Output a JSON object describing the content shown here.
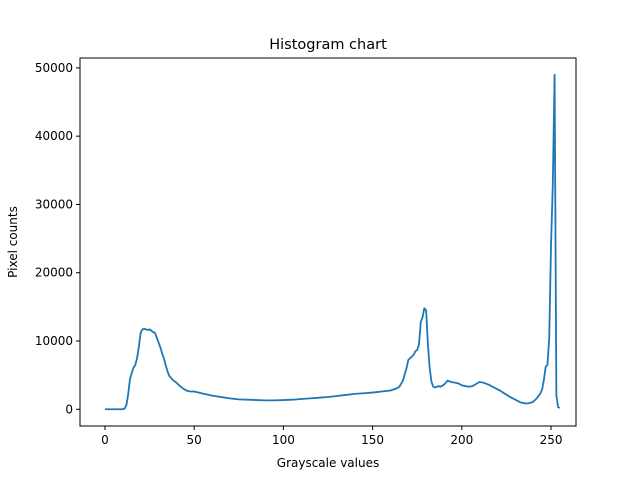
{
  "colors": {
    "line": "#1f77b4",
    "axes": "#000000",
    "background": "#ffffff"
  },
  "chart_data": {
    "type": "line",
    "title": "Histogram chart",
    "xlabel": "Grayscale values",
    "ylabel": "Pixel counts",
    "xlim": [
      -14,
      264
    ],
    "ylim": [
      -2450,
      51450
    ],
    "xticks": [
      0,
      50,
      100,
      150,
      200,
      250
    ],
    "yticks": [
      0,
      10000,
      20000,
      30000,
      40000,
      50000
    ],
    "grid": false,
    "legend": "none",
    "series": [
      {
        "x": [
          0,
          5,
          10,
          11,
          12,
          13,
          14,
          15,
          16,
          17,
          18,
          19,
          20,
          21,
          22,
          23,
          24,
          25,
          26,
          27,
          28,
          29,
          30,
          31,
          32,
          33,
          34,
          35,
          36,
          38,
          40,
          42,
          44,
          46,
          48,
          50,
          55,
          60,
          65,
          70,
          75,
          80,
          85,
          90,
          95,
          100,
          105,
          110,
          115,
          120,
          125,
          130,
          135,
          140,
          145,
          150,
          155,
          160,
          163,
          165,
          167,
          169,
          170,
          171,
          172,
          173,
          174,
          175,
          176,
          177,
          178,
          179,
          180,
          181,
          182,
          183,
          184,
          185,
          186,
          187,
          188,
          190,
          192,
          194,
          196,
          198,
          200,
          202,
          204,
          206,
          208,
          210,
          212,
          215,
          218,
          221,
          224,
          227,
          230,
          233,
          236,
          238,
          240,
          242,
          244,
          245,
          246,
          247,
          248,
          249,
          250,
          251,
          252,
          253,
          254,
          255
        ],
        "y": [
          0,
          0,
          0,
          100,
          600,
          2200,
          4400,
          5300,
          6100,
          6500,
          7500,
          9200,
          11200,
          11700,
          11800,
          11700,
          11600,
          11700,
          11500,
          11300,
          11200,
          10500,
          9800,
          9100,
          8200,
          7500,
          6500,
          5600,
          4900,
          4300,
          3900,
          3400,
          3000,
          2700,
          2600,
          2600,
          2300,
          2000,
          1800,
          1600,
          1450,
          1400,
          1350,
          1300,
          1300,
          1350,
          1400,
          1500,
          1600,
          1700,
          1800,
          1950,
          2100,
          2250,
          2350,
          2450,
          2600,
          2750,
          3000,
          3300,
          4200,
          6000,
          7200,
          7500,
          7700,
          8000,
          8500,
          8700,
          9500,
          12800,
          13500,
          14800,
          14500,
          9500,
          6000,
          4000,
          3300,
          3200,
          3300,
          3400,
          3300,
          3600,
          4200,
          4000,
          3900,
          3800,
          3500,
          3400,
          3300,
          3400,
          3700,
          4000,
          3900,
          3600,
          3200,
          2800,
          2300,
          1800,
          1400,
          1000,
          850,
          900,
          1100,
          1600,
          2300,
          2900,
          4300,
          6200,
          6500,
          10500,
          24000,
          33000,
          49000,
          2000,
          300,
          200
        ]
      }
    ]
  }
}
